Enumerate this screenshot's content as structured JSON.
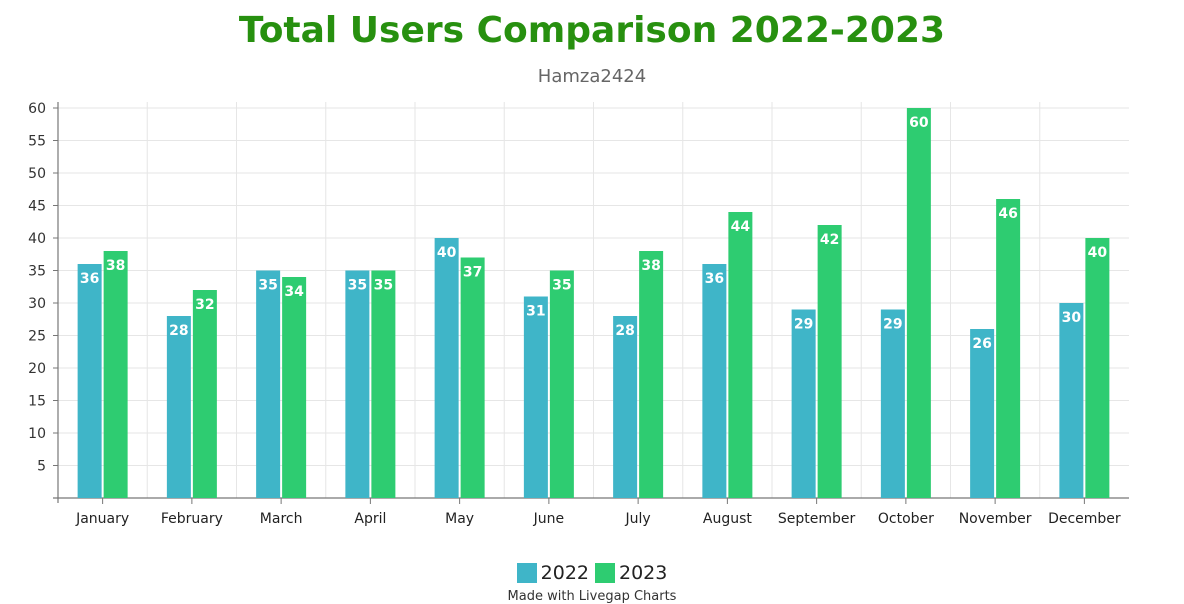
{
  "title": "Total Users Comparison 2022-2023",
  "subtitle": "Hamza2424",
  "credit": "Made with Livegap Charts",
  "colors": {
    "title": "#27900f",
    "series_2022": "#3fb5c8",
    "series_2023": "#2ecc71",
    "grid": "#e6e6e6"
  },
  "chart_data": {
    "type": "bar",
    "categories": [
      "January",
      "February",
      "March",
      "April",
      "May",
      "June",
      "July",
      "August",
      "September",
      "October",
      "November",
      "December"
    ],
    "series": [
      {
        "name": "2022",
        "values": [
          36,
          28,
          35,
          35,
          40,
          31,
          28,
          36,
          29,
          29,
          26,
          30
        ]
      },
      {
        "name": "2023",
        "values": [
          38,
          32,
          34,
          35,
          37,
          35,
          38,
          44,
          42,
          60,
          46,
          40
        ]
      }
    ],
    "ylim": [
      0,
      60
    ],
    "yticks": [
      5,
      10,
      15,
      20,
      25,
      30,
      35,
      40,
      45,
      50,
      55,
      60
    ],
    "grid": true,
    "legend": "bottom-center",
    "data_labels": true
  }
}
